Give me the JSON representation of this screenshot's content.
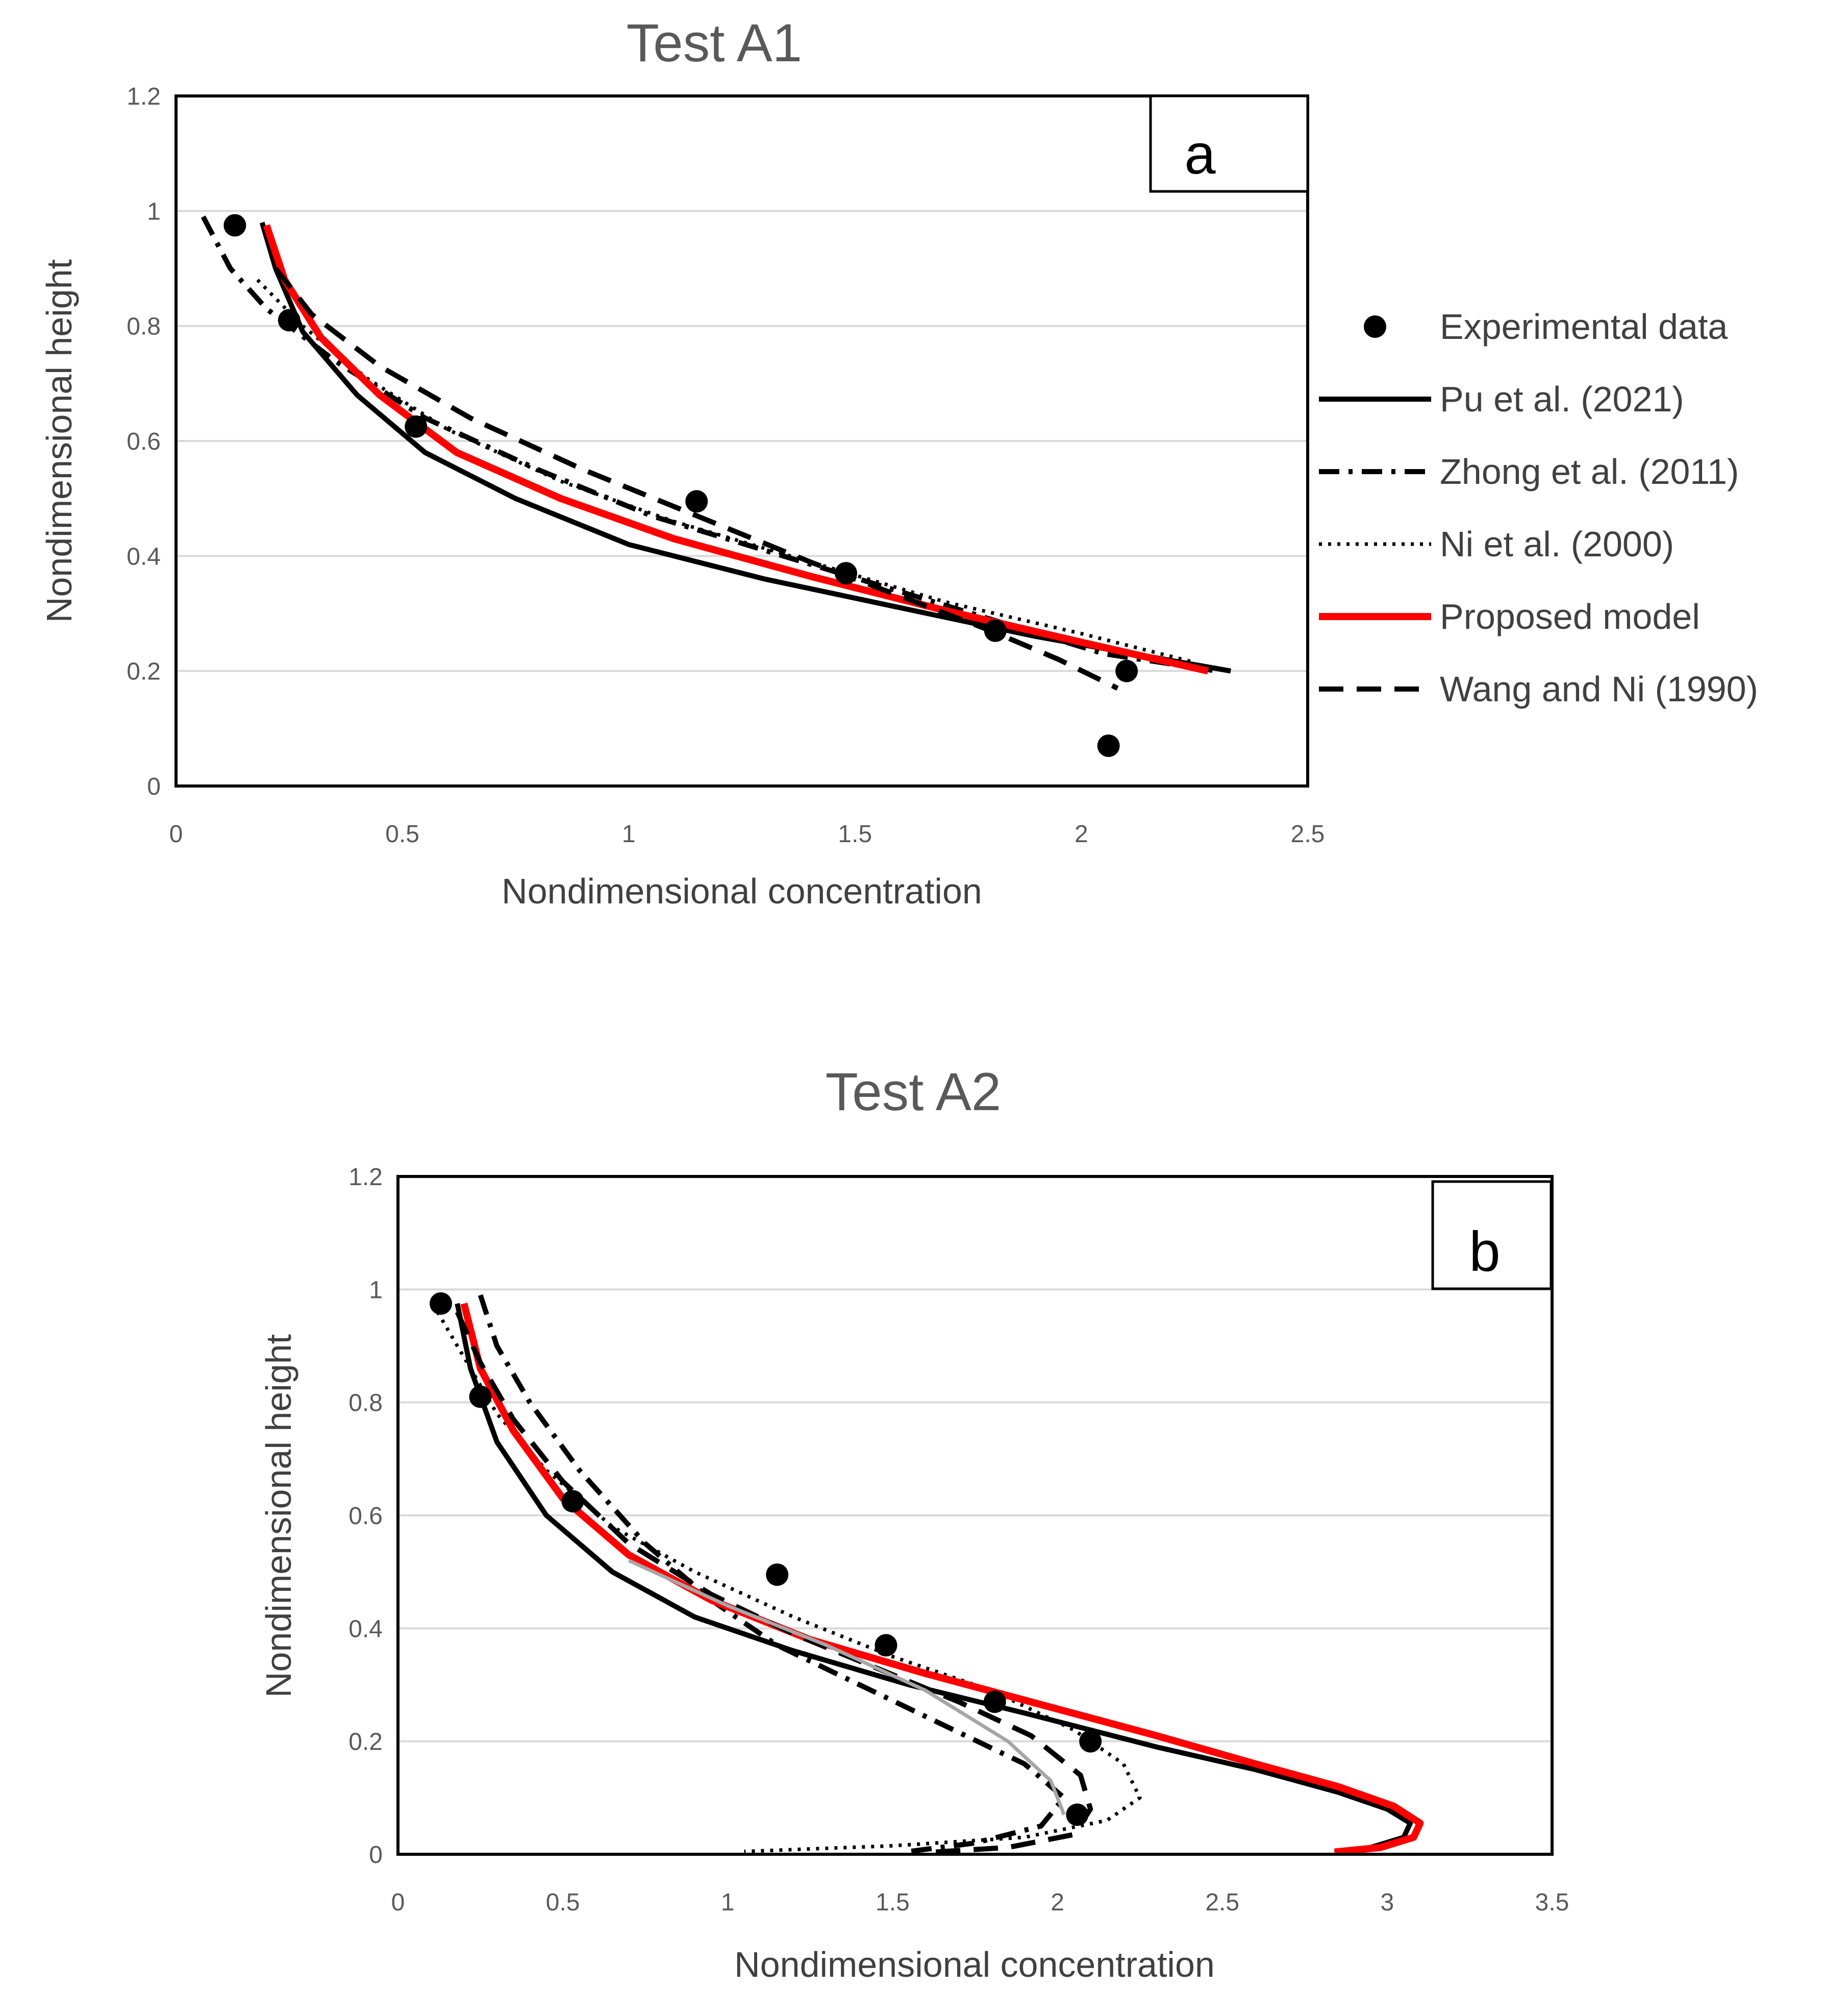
{
  "chart_data": [
    {
      "type": "scatter",
      "title": "Test A1",
      "panel_label": "a",
      "xlabel": "Nondimensional concentration",
      "ylabel": "Nondimensional height",
      "xlim": [
        0,
        2.5
      ],
      "ylim": [
        0,
        1.2
      ],
      "x_ticks": [
        0,
        0.5,
        1,
        1.5,
        2,
        2.5
      ],
      "x_tick_labels": [
        "0",
        "0.5",
        "1",
        "1.5",
        "2",
        "2.5"
      ],
      "y_ticks": [
        0,
        0.2,
        0.4,
        0.6,
        0.8,
        1,
        1.2
      ],
      "y_tick_labels": [
        "0",
        "0.2",
        "0.4",
        "0.6",
        "0.8",
        "1",
        "1.2"
      ],
      "grid": true,
      "legend_position": "right",
      "experimental": [
        [
          0.13,
          0.975
        ],
        [
          0.25,
          0.81
        ],
        [
          0.53,
          0.625
        ],
        [
          1.15,
          0.495
        ],
        [
          1.48,
          0.37
        ],
        [
          1.81,
          0.27
        ],
        [
          2.1,
          0.2
        ],
        [
          2.06,
          0.07
        ]
      ],
      "series": [
        {
          "name": "Pu et al. (2021)",
          "style": "solid",
          "color": "#000000",
          "points": [
            [
              0.19,
              0.98
            ],
            [
              0.22,
              0.9
            ],
            [
              0.28,
              0.79
            ],
            [
              0.4,
              0.68
            ],
            [
              0.55,
              0.58
            ],
            [
              0.75,
              0.5
            ],
            [
              1.0,
              0.42
            ],
            [
              1.3,
              0.36
            ],
            [
              1.6,
              0.31
            ],
            [
              1.9,
              0.26
            ],
            [
              2.15,
              0.225
            ],
            [
              2.33,
              0.2
            ]
          ]
        },
        {
          "name": "Zhong et al. (2011)",
          "style": "dashdot",
          "color": "#000000",
          "points": [
            [
              0.06,
              0.99
            ],
            [
              0.12,
              0.9
            ],
            [
              0.2,
              0.83
            ],
            [
              0.35,
              0.74
            ],
            [
              0.55,
              0.64
            ],
            [
              0.8,
              0.55
            ],
            [
              1.05,
              0.47
            ],
            [
              1.3,
              0.41
            ],
            [
              1.55,
              0.35
            ],
            [
              1.8,
              0.29
            ],
            [
              2.05,
              0.23
            ],
            [
              2.3,
              0.2
            ]
          ]
        },
        {
          "name": "Ni et al. (2000)",
          "style": "dotted",
          "color": "#000000",
          "points": [
            [
              0.18,
              0.88
            ],
            [
              0.28,
              0.8
            ],
            [
              0.42,
              0.71
            ],
            [
              0.6,
              0.62
            ],
            [
              0.85,
              0.53
            ],
            [
              1.1,
              0.46
            ],
            [
              1.4,
              0.39
            ],
            [
              1.7,
              0.32
            ],
            [
              2.0,
              0.265
            ],
            [
              2.25,
              0.215
            ]
          ]
        },
        {
          "name": "Proposed model",
          "style": "solid",
          "color": "#ff0000",
          "points": [
            [
              0.2,
              0.975
            ],
            [
              0.24,
              0.88
            ],
            [
              0.32,
              0.78
            ],
            [
              0.45,
              0.68
            ],
            [
              0.62,
              0.58
            ],
            [
              0.85,
              0.5
            ],
            [
              1.1,
              0.43
            ],
            [
              1.4,
              0.365
            ],
            [
              1.7,
              0.305
            ],
            [
              2.0,
              0.25
            ],
            [
              2.28,
              0.2
            ]
          ]
        },
        {
          "name": "Wang and Ni (1990)",
          "style": "dashed",
          "color": "#000000",
          "points": [
            [
              0.22,
              0.9
            ],
            [
              0.3,
              0.82
            ],
            [
              0.45,
              0.73
            ],
            [
              0.65,
              0.64
            ],
            [
              0.9,
              0.55
            ],
            [
              1.15,
              0.47
            ],
            [
              1.4,
              0.39
            ],
            [
              1.6,
              0.33
            ],
            [
              1.8,
              0.27
            ],
            [
              1.95,
              0.22
            ],
            [
              2.08,
              0.17
            ]
          ]
        }
      ]
    },
    {
      "type": "scatter",
      "title": "Test A2",
      "panel_label": "b",
      "xlabel": "Nondimensional concentration",
      "ylabel": "Nondimensional height",
      "xlim": [
        0,
        3.5
      ],
      "ylim": [
        0,
        1.2
      ],
      "x_ticks": [
        0,
        0.5,
        1,
        1.5,
        2,
        2.5,
        3,
        3.5
      ],
      "x_tick_labels": [
        "0",
        "0.5",
        "1",
        "1.5",
        "2",
        "2.5",
        "3",
        "3.5"
      ],
      "y_ticks": [
        0,
        0.2,
        0.4,
        0.6,
        0.8,
        1,
        1.2
      ],
      "y_tick_labels": [
        "0",
        "0.2",
        "0.4",
        "0.6",
        "0.8",
        "1",
        "1.2"
      ],
      "grid": true,
      "experimental": [
        [
          0.13,
          0.975
        ],
        [
          0.25,
          0.81
        ],
        [
          0.53,
          0.625
        ],
        [
          1.15,
          0.495
        ],
        [
          1.48,
          0.37
        ],
        [
          1.81,
          0.27
        ],
        [
          2.1,
          0.2
        ],
        [
          2.06,
          0.07
        ]
      ],
      "series": [
        {
          "name": "Pu et al. (2021)",
          "style": "solid",
          "color": "#000000",
          "points": [
            [
              0.18,
              0.975
            ],
            [
              0.22,
              0.86
            ],
            [
              0.3,
              0.73
            ],
            [
              0.45,
              0.6
            ],
            [
              0.65,
              0.5
            ],
            [
              0.9,
              0.42
            ],
            [
              1.2,
              0.36
            ],
            [
              1.55,
              0.3
            ],
            [
              1.9,
              0.25
            ],
            [
              2.3,
              0.19
            ],
            [
              2.6,
              0.15
            ],
            [
              2.85,
              0.11
            ],
            [
              3.0,
              0.08
            ],
            [
              3.07,
              0.055
            ],
            [
              3.05,
              0.03
            ],
            [
              2.95,
              0.012
            ],
            [
              2.84,
              0.005
            ]
          ]
        },
        {
          "name": "Zhong et al. (2011)",
          "style": "dashdot",
          "color": "#000000",
          "points": [
            [
              0.25,
              0.99
            ],
            [
              0.3,
              0.9
            ],
            [
              0.4,
              0.8
            ],
            [
              0.55,
              0.68
            ],
            [
              0.75,
              0.55
            ],
            [
              0.95,
              0.45
            ],
            [
              1.15,
              0.37
            ],
            [
              1.4,
              0.3
            ],
            [
              1.65,
              0.23
            ],
            [
              1.9,
              0.16
            ],
            [
              2.02,
              0.1
            ],
            [
              1.95,
              0.05
            ],
            [
              1.75,
              0.02
            ],
            [
              1.55,
              0.005
            ]
          ]
        },
        {
          "name": "Ni et al. (2000)",
          "style": "dotted",
          "color": "#000000",
          "points": [
            [
              0.12,
              0.96
            ],
            [
              0.2,
              0.88
            ],
            [
              0.3,
              0.78
            ],
            [
              0.45,
              0.68
            ],
            [
              0.65,
              0.58
            ],
            [
              0.9,
              0.5
            ],
            [
              1.2,
              0.42
            ],
            [
              1.5,
              0.35
            ],
            [
              1.8,
              0.29
            ],
            [
              2.05,
              0.22
            ],
            [
              2.2,
              0.16
            ],
            [
              2.25,
              0.1
            ],
            [
              2.15,
              0.06
            ],
            [
              1.9,
              0.03
            ],
            [
              1.5,
              0.015
            ],
            [
              1.05,
              0.005
            ]
          ]
        },
        {
          "name": "Proposed model",
          "style": "solid",
          "color": "#ff0000",
          "points": [
            [
              0.2,
              0.975
            ],
            [
              0.25,
              0.86
            ],
            [
              0.35,
              0.75
            ],
            [
              0.5,
              0.63
            ],
            [
              0.7,
              0.53
            ],
            [
              0.95,
              0.45
            ],
            [
              1.25,
              0.38
            ],
            [
              1.6,
              0.32
            ],
            [
              1.95,
              0.265
            ],
            [
              2.3,
              0.21
            ],
            [
              2.6,
              0.16
            ],
            [
              2.85,
              0.12
            ],
            [
              3.02,
              0.085
            ],
            [
              3.1,
              0.055
            ],
            [
              3.08,
              0.03
            ],
            [
              2.98,
              0.012
            ],
            [
              2.84,
              0.004
            ]
          ]
        },
        {
          "name": "Wang and Ni (1990)",
          "style": "dashed",
          "color": "#000000",
          "points": [
            [
              0.18,
              0.96
            ],
            [
              0.25,
              0.87
            ],
            [
              0.35,
              0.77
            ],
            [
              0.5,
              0.66
            ],
            [
              0.7,
              0.55
            ],
            [
              0.95,
              0.46
            ],
            [
              1.2,
              0.39
            ],
            [
              1.45,
              0.33
            ],
            [
              1.7,
              0.27
            ],
            [
              1.92,
              0.21
            ],
            [
              2.07,
              0.14
            ],
            [
              2.1,
              0.08
            ],
            [
              2.05,
              0.035
            ],
            [
              1.85,
              0.012
            ],
            [
              1.6,
              0.003
            ]
          ]
        },
        {
          "name": "unlabeled grey curve",
          "style": "solid",
          "color": "#a6a6a6",
          "points": [
            [
              0.7,
              0.52
            ],
            [
              1.0,
              0.44
            ],
            [
              1.3,
              0.37
            ],
            [
              1.6,
              0.29
            ],
            [
              1.85,
              0.2
            ],
            [
              1.98,
              0.13
            ],
            [
              2.02,
              0.07
            ]
          ]
        }
      ]
    }
  ]
}
